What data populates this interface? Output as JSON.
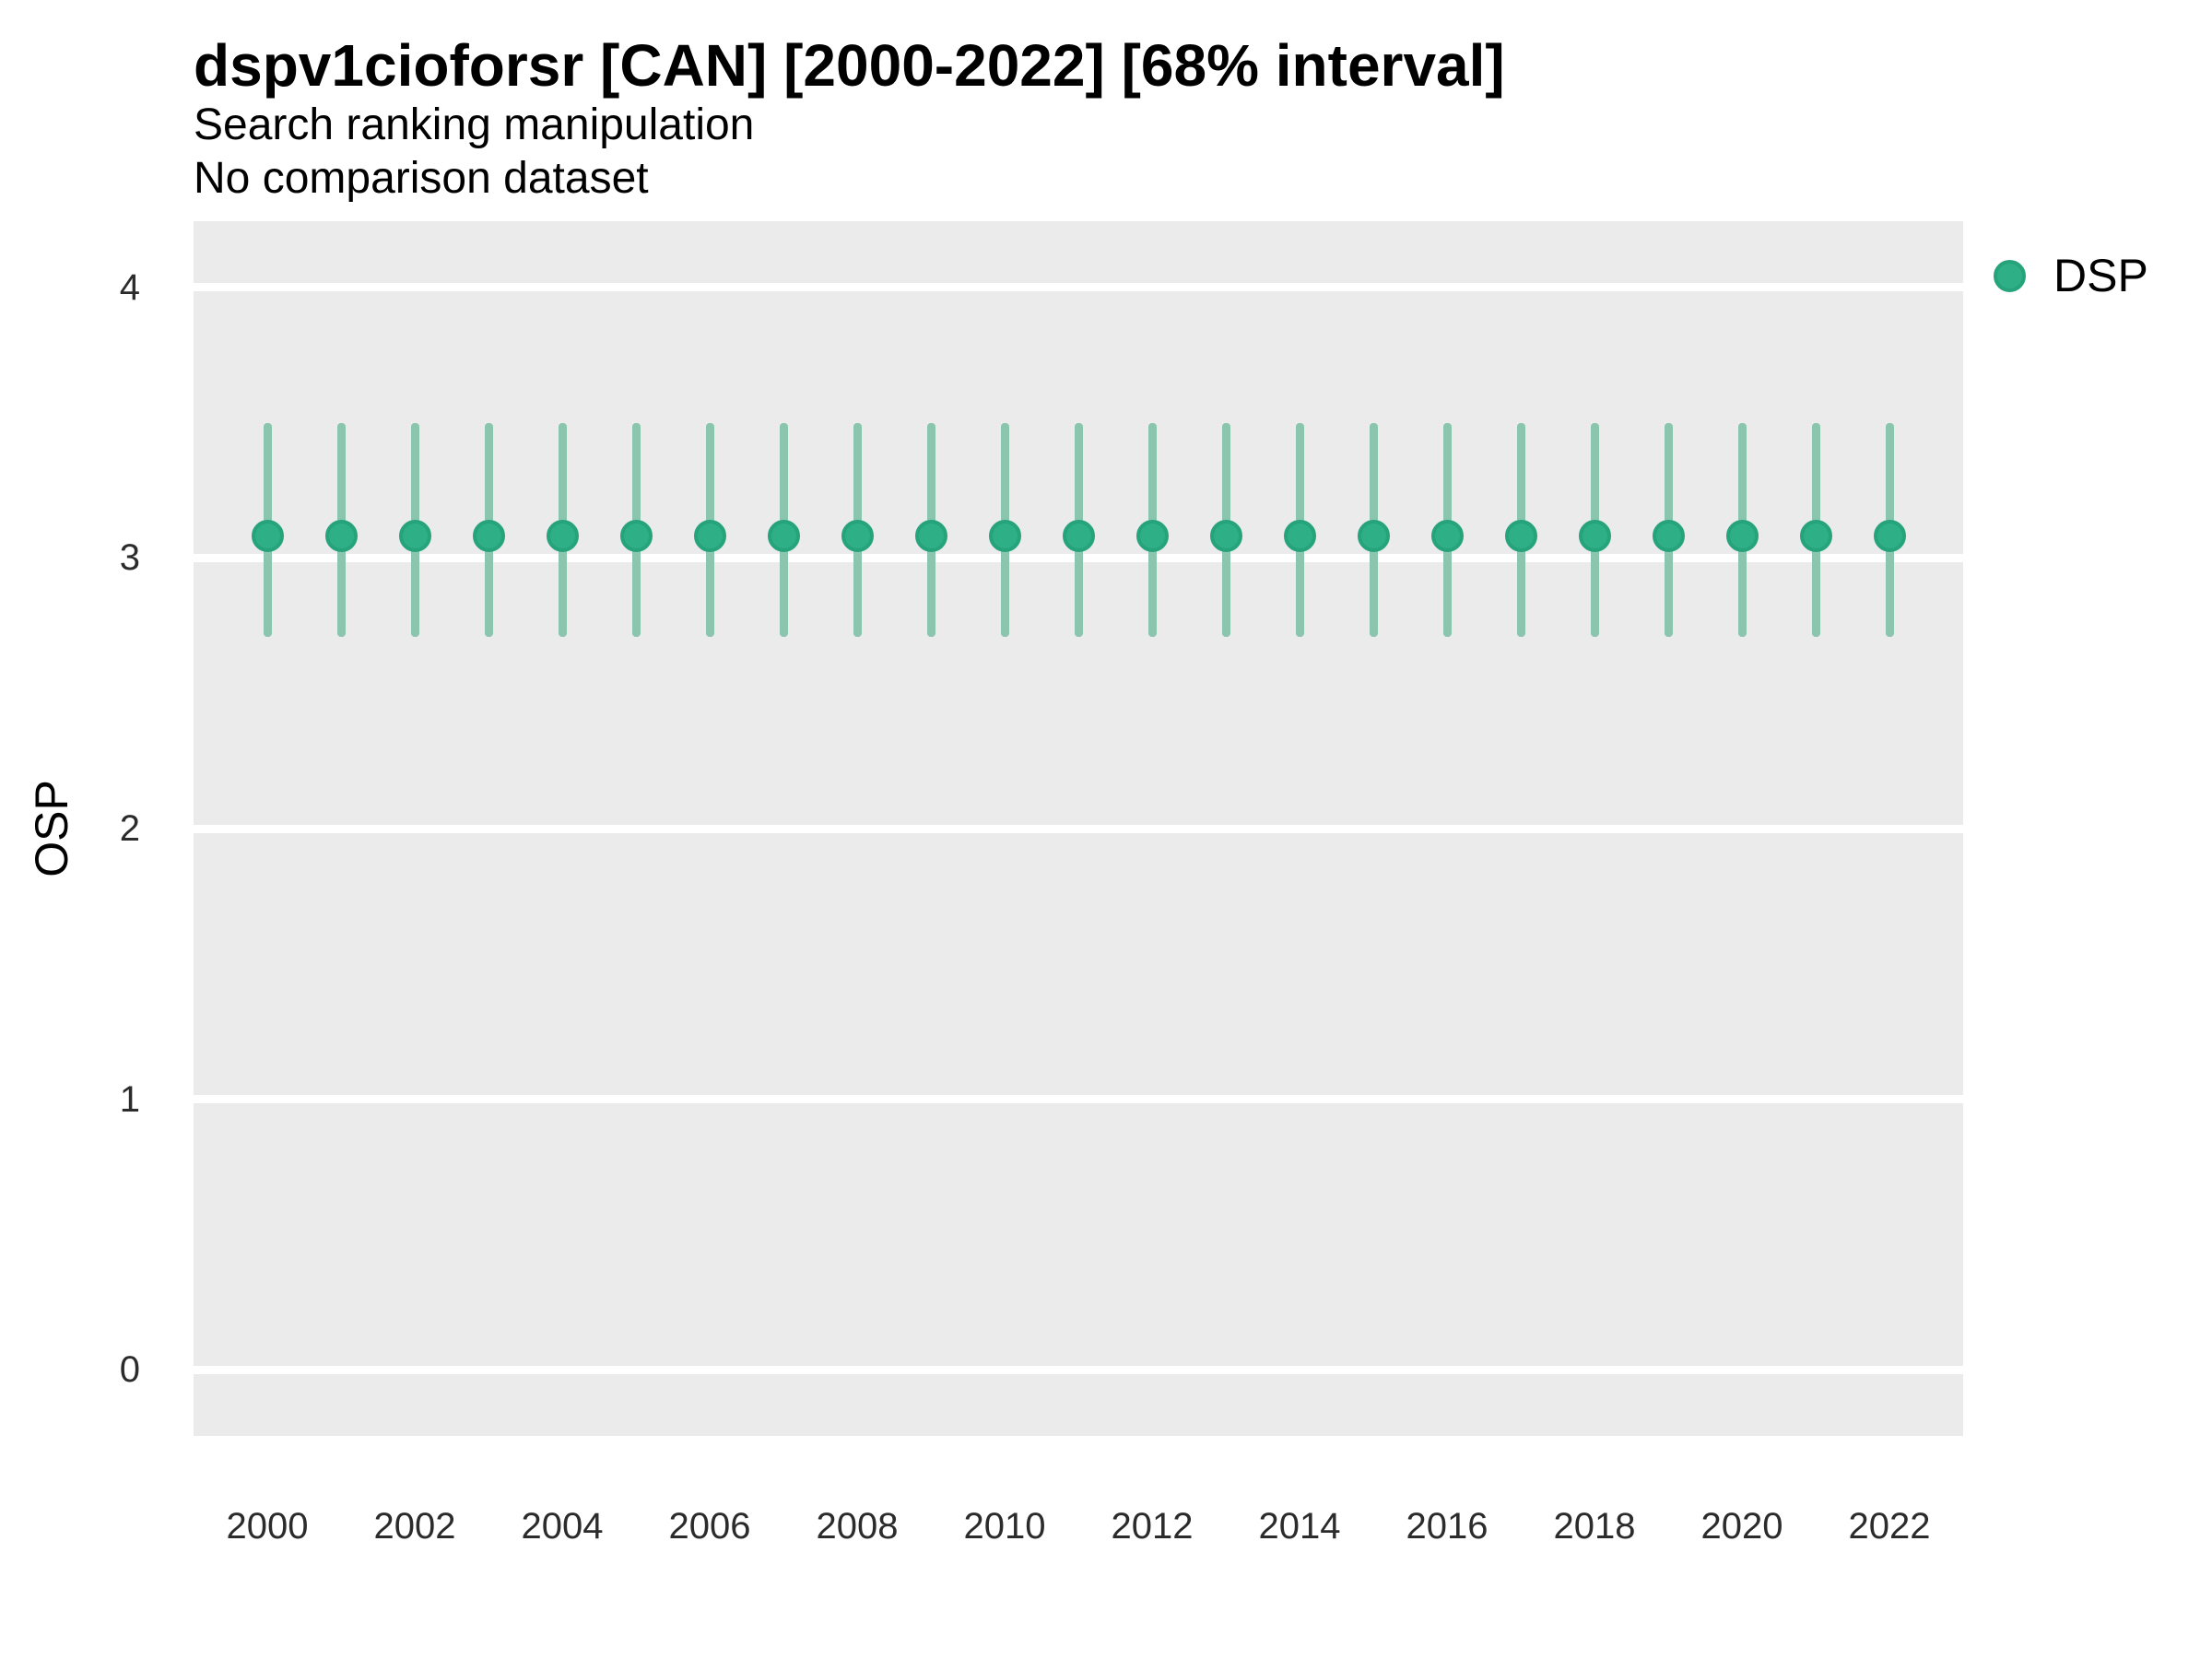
{
  "header": {
    "title": "dspv1cioforsr [CAN] [2000-2022] [68% interval]",
    "subtitle": "Search ranking manipulation",
    "subtitle2": "No comparison dataset"
  },
  "axes": {
    "y_title": "OSP",
    "y_ticks": [
      0,
      1,
      2,
      3,
      4
    ],
    "x_ticks": [
      2000,
      2002,
      2004,
      2006,
      2008,
      2010,
      2012,
      2014,
      2016,
      2018,
      2020,
      2022
    ]
  },
  "legend": {
    "items": [
      {
        "label": "DSP",
        "marker": "circle-icon",
        "color": "#2FAF85"
      }
    ],
    "position": "right"
  },
  "colors": {
    "panel_background": "#EBEBEB",
    "gridline": "#FFFFFF",
    "point_fill": "#2FAF85",
    "point_stroke": "#27A37B",
    "interval_bar": "#8AC5AD",
    "text": "#000000",
    "tick_text": "#2b2b2b"
  },
  "chart_data": {
    "type": "scatter",
    "subtype": "pointrange",
    "title": "dspv1cioforsr [CAN] [2000-2022] [68% interval]",
    "subtitle": "Search ranking manipulation",
    "subtitle2": "No comparison dataset",
    "xlabel": "",
    "ylabel": "OSP",
    "grid": true,
    "legend_position": "right",
    "xlim": [
      1999,
      2023
    ],
    "ylim": [
      -0.245,
      4.245
    ],
    "y_ticks": [
      0,
      1,
      2,
      3,
      4
    ],
    "x_ticks": [
      2000,
      2002,
      2004,
      2006,
      2008,
      2010,
      2012,
      2014,
      2016,
      2018,
      2020,
      2022
    ],
    "x": [
      2000,
      2001,
      2002,
      2003,
      2004,
      2005,
      2006,
      2007,
      2008,
      2009,
      2010,
      2011,
      2012,
      2013,
      2014,
      2015,
      2016,
      2017,
      2018,
      2019,
      2020,
      2021,
      2022
    ],
    "series": [
      {
        "name": "DSP",
        "error_bars": "68% interval",
        "values": [
          3.08,
          3.08,
          3.08,
          3.08,
          3.08,
          3.08,
          3.08,
          3.08,
          3.08,
          3.08,
          3.08,
          3.08,
          3.08,
          3.08,
          3.08,
          3.08,
          3.08,
          3.08,
          3.08,
          3.08,
          3.08,
          3.08,
          3.08
        ],
        "lower": [
          2.71,
          2.71,
          2.71,
          2.71,
          2.71,
          2.71,
          2.71,
          2.71,
          2.71,
          2.71,
          2.71,
          2.71,
          2.71,
          2.71,
          2.71,
          2.71,
          2.71,
          2.71,
          2.71,
          2.71,
          2.71,
          2.71,
          2.71
        ],
        "upper": [
          3.5,
          3.5,
          3.5,
          3.5,
          3.5,
          3.5,
          3.5,
          3.5,
          3.5,
          3.5,
          3.5,
          3.5,
          3.5,
          3.5,
          3.5,
          3.5,
          3.5,
          3.5,
          3.5,
          3.5,
          3.5,
          3.5,
          3.5
        ]
      }
    ]
  }
}
